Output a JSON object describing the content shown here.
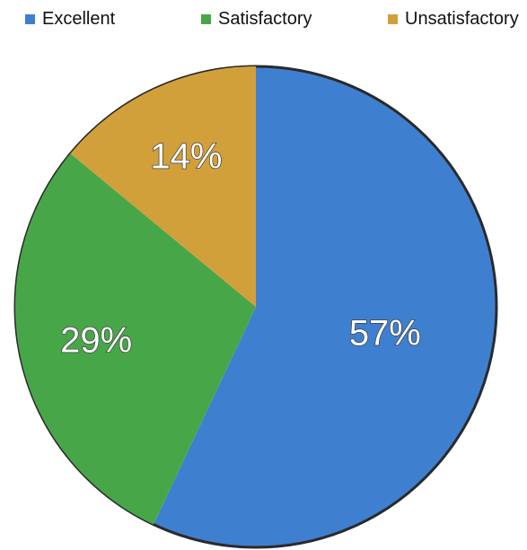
{
  "chart_data": {
    "type": "pie",
    "categories": [
      "Excellent",
      "Satisfactory",
      "Unsatisfactory"
    ],
    "values": [
      57,
      29,
      14
    ],
    "labels": [
      "57%",
      "29%",
      "14%"
    ],
    "colors": [
      "#3f7fd0",
      "#47a748",
      "#d2a03a"
    ],
    "legend_placement": "top"
  }
}
